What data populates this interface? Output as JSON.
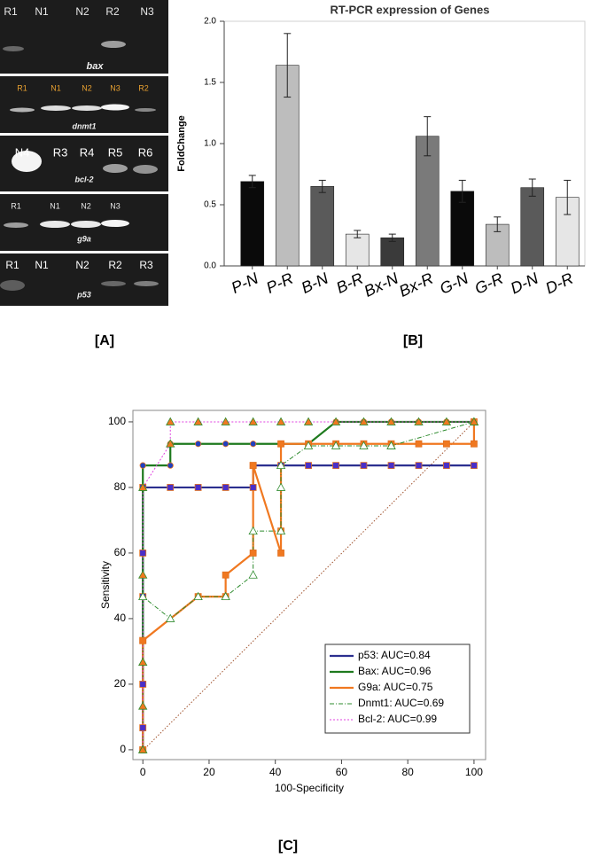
{
  "panels": [
    "[A]",
    "[B]",
    "[C]"
  ],
  "gels": [
    {
      "lanes": [
        "R1",
        "N1",
        "N2",
        "R2",
        "N3"
      ],
      "gene": "bax"
    },
    {
      "lanes": [
        "R1",
        "N1",
        "N2",
        "N3",
        "R2"
      ],
      "gene": "dnmt1"
    },
    {
      "lanes": [
        "N4",
        "R3",
        "R4",
        "R5",
        "R6"
      ],
      "gene": "bcl-2"
    },
    {
      "lanes": [
        "R1",
        "N1",
        "N2",
        "N3"
      ],
      "gene": "g9a"
    },
    {
      "lanes": [
        "R1",
        "N1",
        "N2",
        "R2",
        "R3"
      ],
      "gene": "p53"
    }
  ],
  "chart_data": [
    {
      "type": "bar",
      "title": "RT-PCR expression of Genes",
      "y_label": "FoldChange",
      "categories": [
        "P-N",
        "P-R",
        "B-N",
        "B-R",
        "Bx-N",
        "Bx-R",
        "G-N",
        "G-R",
        "D-N",
        "D-R"
      ],
      "values": [
        0.69,
        1.64,
        0.65,
        0.26,
        0.23,
        1.06,
        0.61,
        0.34,
        0.64,
        0.56
      ],
      "errors": [
        0.05,
        0.26,
        0.05,
        0.03,
        0.03,
        0.16,
        0.09,
        0.06,
        0.07,
        0.14
      ],
      "colors": [
        "#0a0a0a",
        "#bdbdbd",
        "#5a5a5a",
        "#e6e6e6",
        "#3a3a3a",
        "#7a7a7a",
        "#0a0a0a",
        "#bdbdbd",
        "#5a5a5a",
        "#e6e6e6"
      ],
      "ylim": [
        0,
        2
      ],
      "yticks": [
        {
          "value": 0,
          "label": "0.0"
        },
        0.5,
        {
          "value": 1,
          "label": "1.0"
        },
        1.5,
        {
          "value": 2,
          "label": "2.0"
        }
      ]
    },
    {
      "type": "line",
      "x_label": "100-Specificity",
      "y_label": "Sensitivity",
      "xlim": [
        -3,
        103.5
      ],
      "ylim": [
        -3,
        103.5
      ],
      "xticks": [
        0,
        20,
        40,
        60,
        80,
        100
      ],
      "yticks": [
        0,
        20,
        40,
        60,
        80,
        100
      ],
      "legend": "lower right",
      "series": [
        {
          "name": "p53: AUC=0.84",
          "color": "#2b2f8f",
          "style": "solid",
          "marker": "square",
          "marker_color": "#4a2fc8",
          "x": [
            0,
            0,
            0,
            0,
            0,
            0,
            0,
            8.3,
            16.7,
            25,
            33.3,
            33.3,
            41.7,
            50,
            58.3,
            66.7,
            75,
            83.3,
            91.7,
            100
          ],
          "values": [
            0,
            6.7,
            20,
            33.3,
            46.7,
            60,
            80,
            80,
            80,
            80,
            80,
            86.7,
            86.7,
            86.7,
            86.7,
            86.7,
            86.7,
            86.7,
            86.7,
            86.7
          ]
        },
        {
          "name": "Bax: AUC=0.96",
          "color": "#1e7a1e",
          "style": "solid",
          "marker": "circle",
          "marker_color": "#2040c0",
          "x": [
            0,
            0,
            8.3,
            8.3,
            16.7,
            25,
            33.3,
            41.7,
            50,
            58.3,
            66.7,
            75,
            83.3,
            91.7,
            100
          ],
          "values": [
            0,
            86.7,
            86.7,
            93.3,
            93.3,
            93.3,
            93.3,
            93.3,
            93.3,
            100,
            100,
            100,
            100,
            100,
            100
          ]
        },
        {
          "name": "G9a: AUC=0.75",
          "color": "#f07820",
          "style": "solid",
          "marker": "square",
          "marker_color": "#f07820",
          "x": [
            0,
            0,
            16.7,
            25,
            25,
            33.3,
            33.3,
            41.7,
            41.7,
            41.7,
            50,
            58.3,
            66.7,
            75,
            83.3,
            91.7,
            100,
            100
          ],
          "values": [
            0,
            33.3,
            46.7,
            46.7,
            53.3,
            60,
            86.7,
            60,
            66.7,
            93.3,
            93.3,
            93.3,
            93.3,
            93.3,
            93.3,
            93.3,
            93.3,
            100
          ]
        },
        {
          "name": "Dnmt1: AUC=0.69",
          "color": "#2e8b2e",
          "style": "dashdot",
          "marker": "triangle",
          "marker_color": "#ffffff",
          "x": [
            0,
            0,
            8.3,
            16.7,
            25,
            33.3,
            33.3,
            41.7,
            41.7,
            41.7,
            50,
            58.3,
            66.7,
            75,
            75,
            100
          ],
          "values": [
            0,
            46.7,
            40,
            46.7,
            46.7,
            53.3,
            66.7,
            66.7,
            80,
            86.7,
            92.7,
            92.7,
            92.7,
            92.7,
            92.7,
            100
          ]
        },
        {
          "name": "Bcl-2: AUC=0.99",
          "color": "#e040e0",
          "style": "dotted",
          "marker": "triangle",
          "marker_color": "#f07820",
          "x": [
            0,
            0,
            0,
            0,
            0,
            8.3,
            8.3,
            16.7,
            25,
            33.3,
            41.7,
            50,
            58.3,
            66.7,
            75,
            83.3,
            91.7,
            100
          ],
          "values": [
            0,
            13.3,
            26.7,
            53.3,
            80,
            93.3,
            100,
            100,
            100,
            100,
            100,
            100,
            100,
            100,
            100,
            100,
            100,
            100
          ]
        }
      ]
    }
  ]
}
